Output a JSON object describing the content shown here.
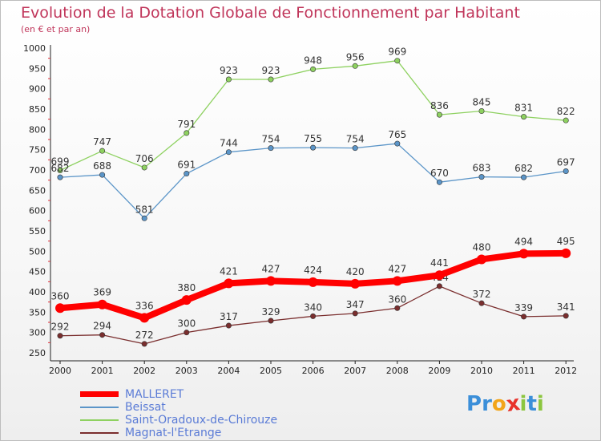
{
  "title": "Evolution de la Dotation Globale de Fonctionnement par Habitant",
  "subtitle": "(en € et par an)",
  "logo": {
    "text": "Prox iti",
    "letters": [
      "P",
      "r",
      "o",
      "x",
      "i",
      "t",
      "i"
    ],
    "colors": [
      "#3b8fd9",
      "#3b8fd9",
      "#f2a51a",
      "#e8322b",
      "#8cc63f",
      "#3b8fd9",
      "#8cc63f"
    ]
  },
  "chart_data": {
    "type": "line",
    "title": "Evolution de la Dotation Globale de Fonctionnement par Habitant",
    "subtitle": "(en € et par an)",
    "x": [
      "2000",
      "2001",
      "2002",
      "2003",
      "2004",
      "2005",
      "2006",
      "2007",
      "2008",
      "2009",
      "2010",
      "2011",
      "2012"
    ],
    "y_ticks": [
      "1000",
      "950",
      "900",
      "850",
      "800",
      "750",
      "700",
      "650",
      "600",
      "550",
      "500",
      "450",
      "400",
      "350",
      "300",
      "250"
    ],
    "ylim": [
      250,
      1000
    ],
    "grid": false,
    "legend_position": "bottom-left",
    "series": [
      {
        "name": "MALLERET",
        "color": "#ff0000",
        "thick": true,
        "values": [
          360,
          369,
          336,
          380,
          421,
          427,
          424,
          420,
          427,
          441,
          480,
          494,
          495
        ],
        "labels": [
          "360",
          "369",
          "336",
          "380",
          "421",
          "427",
          "424",
          "420",
          "427",
          "441",
          "480",
          "494",
          "495"
        ]
      },
      {
        "name": "Beissat",
        "color": "#5b95c8",
        "thick": false,
        "values": [
          682,
          688,
          581,
          691,
          744,
          754,
          755,
          754,
          765,
          670,
          683,
          682,
          697
        ],
        "labels": [
          "682",
          "688",
          "581",
          "691",
          "744",
          "754",
          "755",
          "754",
          "765",
          "670",
          "683",
          "682",
          "697"
        ]
      },
      {
        "name": "Saint-Oradoux-de-Chirouze",
        "color": "#8ed160",
        "thick": false,
        "values": [
          699,
          747,
          706,
          791,
          923,
          923,
          948,
          956,
          969,
          836,
          845,
          831,
          822
        ],
        "labels": [
          "699",
          "747",
          "706",
          "791",
          "923",
          "923",
          "948",
          "956",
          "969",
          "836",
          "845",
          "831",
          "822"
        ]
      },
      {
        "name": "Magnat-l'Etrange",
        "color": "#7a2e2e",
        "thick": false,
        "values": [
          292,
          294,
          272,
          300,
          317,
          329,
          340,
          347,
          360,
          414,
          372,
          339,
          341
        ],
        "labels": [
          "292",
          "294",
          "272",
          "300",
          "317",
          "329",
          "340",
          "347",
          "360",
          "414",
          "372",
          "339",
          "341"
        ]
      }
    ]
  }
}
